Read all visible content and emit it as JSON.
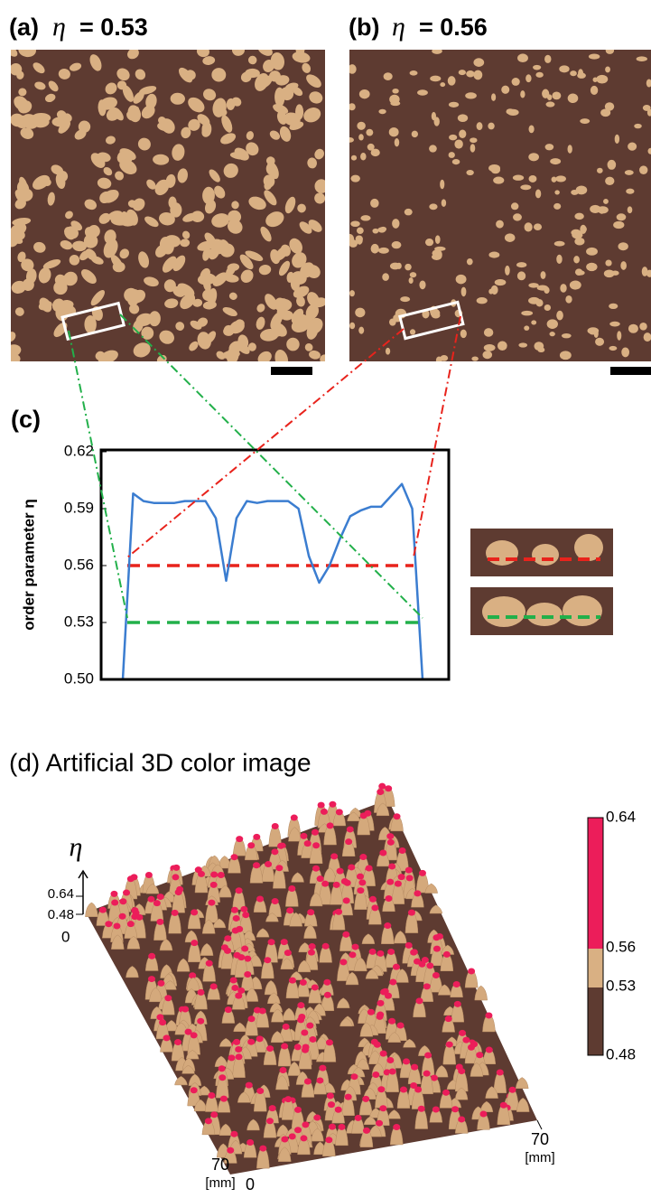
{
  "panel_a": {
    "label": "(a)",
    "symbol": "η",
    "value": "= 0.53"
  },
  "panel_b": {
    "label": "(b)",
    "symbol": "η",
    "value": "= 0.56"
  },
  "chart_data": {
    "type": "line",
    "title": "(c)",
    "y_label": "order parameter η",
    "ylim": [
      0.5,
      0.62
    ],
    "yticks": [
      {
        "value": 0.5,
        "label": "0.50"
      },
      0.53,
      0.56,
      0.59,
      0.62
    ],
    "series": [
      {
        "color": "#3b7dd0",
        "values": [
          0.5,
          0.598,
          0.594,
          0.593,
          0.593,
          0.593,
          0.594,
          0.594,
          0.594,
          0.585,
          0.552,
          0.585,
          0.594,
          0.593,
          0.594,
          0.594,
          0.594,
          0.59,
          0.565,
          0.551,
          0.56,
          0.574,
          0.586,
          0.589,
          0.591,
          0.591,
          0.597,
          0.603,
          0.59,
          0.5
        ]
      }
    ],
    "reference_lines": [
      {
        "value": 0.56,
        "color": "#e8231c"
      },
      {
        "value": 0.53,
        "color": "#22b04a"
      }
    ]
  },
  "panel_d": {
    "title": "(d) Artificial 3D color image",
    "axis_symbol": "η",
    "z_top": "0.64",
    "z_bottom": "0.48",
    "origin_left": "0",
    "origin_bottom": "0",
    "x_end": "70",
    "x_unit": "[mm]",
    "y_end": "70",
    "y_unit": "[mm]",
    "colorbar_labels": [
      "0.64",
      "0.56",
      "0.53",
      "0.48"
    ]
  }
}
